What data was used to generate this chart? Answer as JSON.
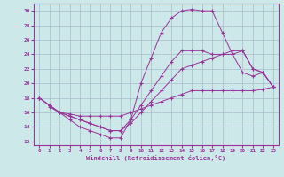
{
  "xlabel": "Windchill (Refroidissement éolien,°C)",
  "bg_color": "#cce8e8",
  "grid_color": "#aabbcc",
  "line_color": "#993399",
  "xlim": [
    -0.5,
    23.5
  ],
  "ylim": [
    11.5,
    31
  ],
  "xticks": [
    0,
    1,
    2,
    3,
    4,
    5,
    6,
    7,
    8,
    9,
    10,
    11,
    12,
    13,
    14,
    15,
    16,
    17,
    18,
    19,
    20,
    21,
    22,
    23
  ],
  "yticks": [
    12,
    14,
    16,
    18,
    20,
    22,
    24,
    26,
    28,
    30
  ],
  "line1_x": [
    0,
    1,
    2,
    3,
    4,
    5,
    6,
    7,
    8,
    9,
    10,
    11,
    12,
    13,
    14,
    15,
    16,
    17,
    18,
    19,
    20,
    21,
    22,
    23
  ],
  "line1_y": [
    18,
    17,
    16,
    15,
    14,
    13.5,
    13,
    12.5,
    12.5,
    15,
    20,
    23.5,
    27,
    29,
    30,
    30.2,
    30,
    30,
    27,
    24,
    21.5,
    21,
    21.5,
    19.5
  ],
  "line2_x": [
    1,
    2,
    3,
    4,
    5,
    6,
    7,
    8,
    9,
    10,
    11,
    12,
    13,
    14,
    15,
    16,
    17,
    18,
    19,
    20,
    21,
    22,
    23
  ],
  "line2_y": [
    16.8,
    16,
    15.8,
    15.5,
    15.5,
    15.5,
    15.5,
    15.5,
    16,
    16.5,
    17,
    17.5,
    18,
    18.5,
    19,
    19,
    19,
    19,
    19,
    19,
    19,
    19.2,
    19.5
  ],
  "line3_x": [
    0,
    1,
    2,
    3,
    4,
    5,
    6,
    7,
    8,
    9,
    10,
    11,
    12,
    13,
    14,
    15,
    16,
    17,
    18,
    19,
    20,
    21,
    22,
    23
  ],
  "line3_y": [
    18,
    17,
    16,
    15.5,
    15,
    14.5,
    14,
    13.5,
    13.5,
    15,
    17,
    19,
    21,
    23,
    24.5,
    24.5,
    24.5,
    24,
    24,
    24,
    24.5,
    22,
    21.5,
    19.5
  ],
  "line4_x": [
    0,
    1,
    2,
    3,
    4,
    5,
    6,
    7,
    8,
    9,
    10,
    11,
    12,
    13,
    14,
    15,
    16,
    17,
    18,
    19,
    20,
    21,
    22,
    23
  ],
  "line4_y": [
    18,
    17,
    16,
    15.5,
    15,
    14.5,
    14,
    13.5,
    13.5,
    14.5,
    16,
    17.5,
    19,
    20.5,
    22,
    22.5,
    23,
    23.5,
    24,
    24.5,
    24.5,
    22,
    21.5,
    19.5
  ]
}
